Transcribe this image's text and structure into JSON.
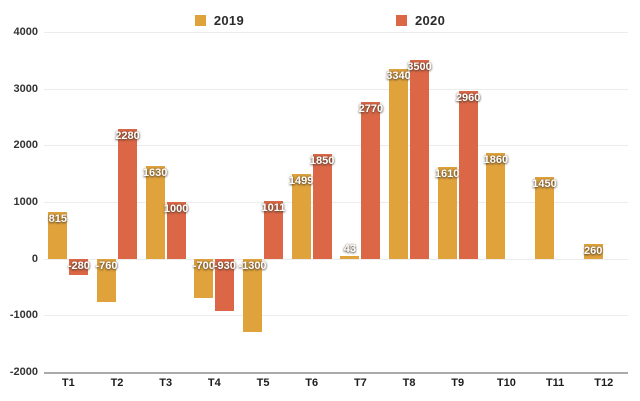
{
  "chart_data": {
    "type": "bar",
    "categories": [
      "T1",
      "T2",
      "T3",
      "T4",
      "T5",
      "T6",
      "T7",
      "T8",
      "T9",
      "T10",
      "T11",
      "T12"
    ],
    "series": [
      {
        "name": "2019",
        "color": "#E0A33C",
        "values": [
          815,
          -760,
          1630,
          -700,
          -1300,
          1499,
          43,
          3340,
          1610,
          1860,
          1450,
          260
        ]
      },
      {
        "name": "2020",
        "color": "#DB6747",
        "values": [
          -280,
          2280,
          1000,
          -930,
          1011,
          1850,
          2770,
          3500,
          2960,
          null,
          null,
          null
        ]
      }
    ],
    "title": "",
    "xlabel": "",
    "ylabel": "",
    "ylim": [
      -2000,
      4000
    ],
    "yticks": [
      4000,
      3000,
      2000,
      1000,
      0,
      -1000,
      -2000
    ],
    "grid": true,
    "legend_position": "top",
    "bar_labels_visible": true,
    "axis_color": "#aaaaaa",
    "gridline_color": "#ececec"
  }
}
